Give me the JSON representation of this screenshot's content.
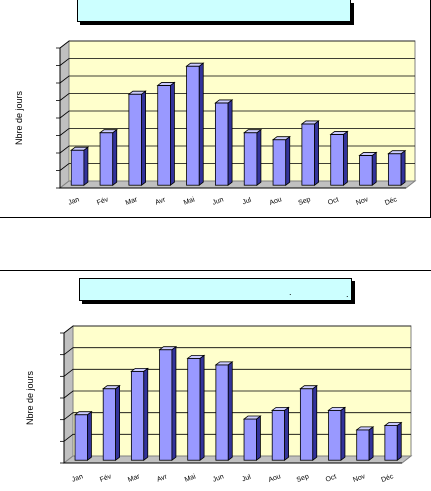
{
  "charts": [
    {
      "chart_data": {
        "type": "bar",
        "title": "",
        "ylabel": "Nbre de jours",
        "xlabel": "",
        "categories": [
          "Jan",
          "Fév",
          "Mar",
          "Avr",
          "Mai",
          "Jun",
          "Jul",
          "Aou",
          "Sep",
          "Oct",
          "Nov",
          "Déc"
        ],
        "values": [
          2.0,
          3.0,
          5.2,
          5.7,
          6.8,
          4.7,
          3.0,
          2.6,
          3.5,
          2.9,
          1.7,
          1.8
        ],
        "ylim": [
          0,
          8
        ],
        "grid": true,
        "bar_color": "#9999ff",
        "plot_bg": "#ffffcc"
      }
    },
    {
      "chart_data": {
        "type": "bar",
        "title": "",
        "ylabel": "Nbre de jours",
        "xlabel": "",
        "categories": [
          "Jan",
          "Fév",
          "Mar",
          "Avr",
          "Mai",
          "Jun",
          "Jul",
          "Aou",
          "Sep",
          "Oct",
          "Nov",
          "Déc"
        ],
        "values": [
          2.1,
          3.3,
          4.1,
          5.1,
          4.7,
          4.4,
          1.9,
          2.3,
          3.3,
          2.3,
          1.4,
          1.6
        ],
        "ylim": [
          0,
          6
        ],
        "grid": true,
        "bar_color": "#9999ff",
        "plot_bg": "#ffffcc"
      }
    }
  ],
  "decor": {
    "title_box_color": "#ccffff",
    "bar_side_color": "#33339a",
    "bar_top_color": "#ccccff"
  }
}
